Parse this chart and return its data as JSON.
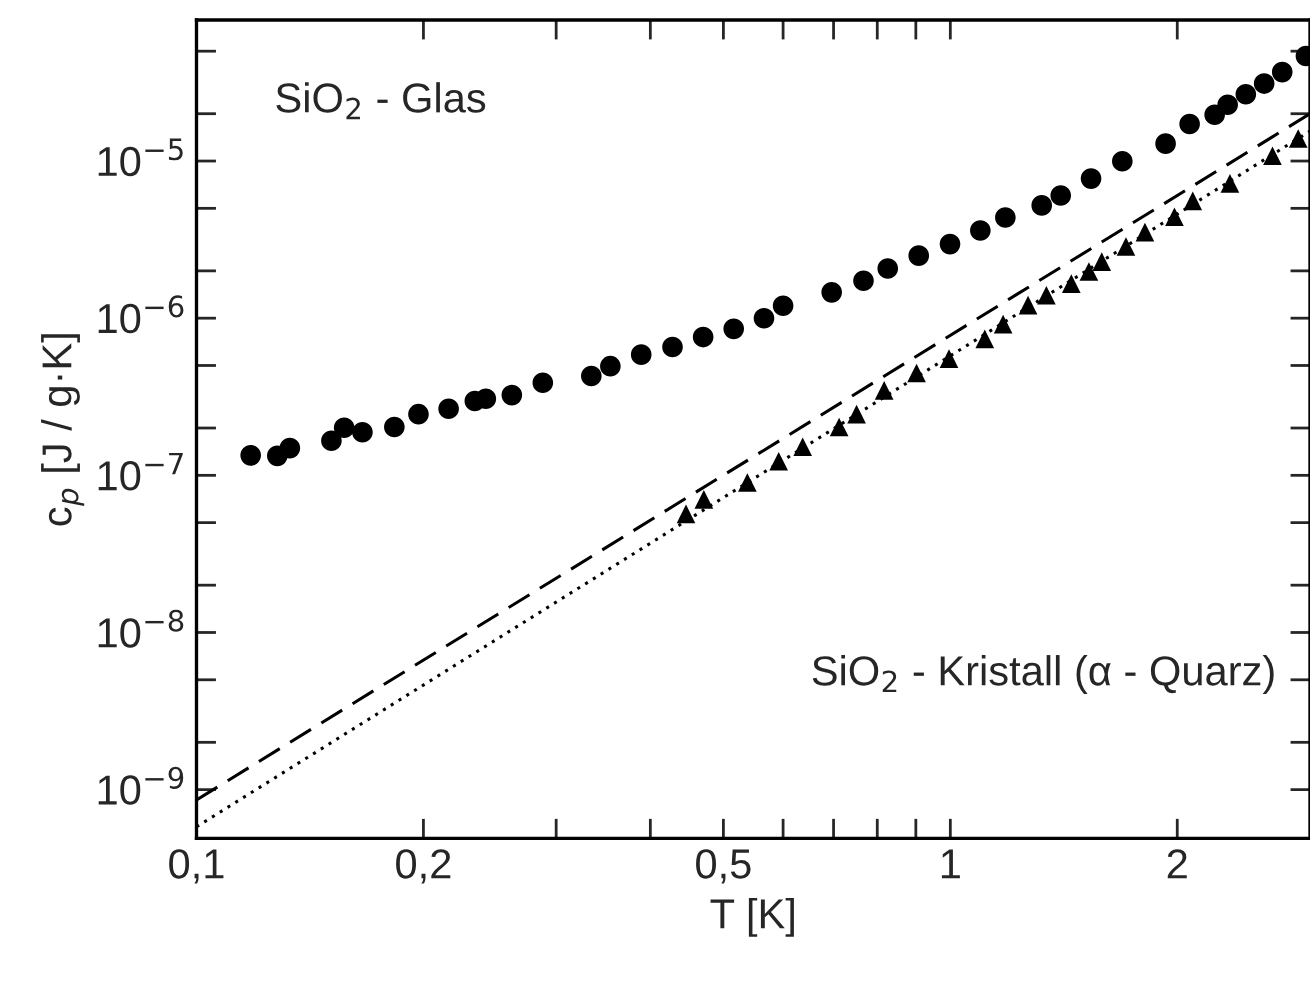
{
  "chart_data": {
    "type": "scatter",
    "xlabel": "T [K]",
    "ylabel": "c$_{p}$ [J / g·K]",
    "log": "xy",
    "grid": false,
    "legend": false,
    "xlim": [
      0.1,
      3
    ],
    "ylim": [
      4.9e-10,
      7.9e-05
    ],
    "xticks": [
      {
        "value": 0.1,
        "label": "0,1"
      },
      {
        "value": 0.2,
        "label": "0,2"
      },
      {
        "value": 0.3,
        "label": null
      },
      {
        "value": 0.4,
        "label": null
      },
      {
        "value": 0.5,
        "label": "0,5"
      },
      {
        "value": 0.6,
        "label": null
      },
      {
        "value": 0.7,
        "label": null
      },
      {
        "value": 0.8,
        "label": null
      },
      {
        "value": 0.9,
        "label": null
      },
      {
        "value": 1,
        "label": "1"
      },
      {
        "value": 2,
        "label": "2"
      }
    ],
    "yticks": [
      {
        "value": 1e-09,
        "label": "10$^{−9}$"
      },
      {
        "value": 2e-09,
        "label": null
      },
      {
        "value": 5e-09,
        "label": null
      },
      {
        "value": 1e-08,
        "label": "10$^{−8}$"
      },
      {
        "value": 2e-08,
        "label": null
      },
      {
        "value": 5e-08,
        "label": null
      },
      {
        "value": 1e-07,
        "label": "10$^{−7}$"
      },
      {
        "value": 2e-07,
        "label": null
      },
      {
        "value": 5e-07,
        "label": null
      },
      {
        "value": 1e-06,
        "label": "10$^{−6}$"
      },
      {
        "value": 2e-06,
        "label": null
      },
      {
        "value": 5e-06,
        "label": null
      },
      {
        "value": 1e-05,
        "label": "10$^{−5}$"
      },
      {
        "value": 2e-05,
        "label": null
      },
      {
        "value": 5e-05,
        "label": null
      }
    ],
    "series": [
      {
        "marker": "circle",
        "color": "#000000",
        "x": [
          0.118,
          0.128,
          0.133,
          0.151,
          0.157,
          0.166,
          0.183,
          0.197,
          0.216,
          0.234,
          0.242,
          0.262,
          0.288,
          0.334,
          0.354,
          0.389,
          0.428,
          0.47,
          0.516,
          0.566,
          0.6,
          0.696,
          0.767,
          0.826,
          0.908,
          0.999,
          1.096,
          1.183,
          1.322,
          1.401,
          1.537,
          1.691,
          1.93,
          2.077,
          2.242,
          2.333,
          2.466,
          2.608,
          2.756,
          2.963
        ],
        "values": [
          1.34e-07,
          1.33e-07,
          1.49e-07,
          1.66e-07,
          2.01e-07,
          1.88e-07,
          2.03e-07,
          2.45e-07,
          2.65e-07,
          2.97e-07,
          3.07e-07,
          3.24e-07,
          3.88e-07,
          4.29e-07,
          4.95e-07,
          5.86e-07,
          6.55e-07,
          7.58e-07,
          8.55e-07,
          1e-06,
          1.2e-06,
          1.46e-06,
          1.73e-06,
          2.07e-06,
          2.5e-06,
          2.96e-06,
          3.61e-06,
          4.37e-06,
          5.22e-06,
          6.04e-06,
          7.73e-06,
          9.97e-06,
          1.29e-05,
          1.72e-05,
          1.97e-05,
          2.28e-05,
          2.66e-05,
          3.11e-05,
          3.68e-05,
          4.66e-05
        ]
      },
      {
        "marker": "triangle",
        "color": "#000000",
        "x": [
          0.446,
          0.471,
          0.538,
          0.592,
          0.637,
          0.712,
          0.751,
          0.817,
          0.902,
          0.996,
          1.111,
          1.175,
          1.268,
          1.341,
          1.447,
          1.527,
          1.588,
          1.71,
          1.812,
          1.983,
          2.097,
          2.349,
          2.675,
          2.894
        ],
        "values": [
          5.69e-08,
          7.03e-08,
          9e-08,
          1.23e-07,
          1.52e-07,
          2.03e-07,
          2.45e-07,
          3.47e-07,
          4.48e-07,
          5.53e-07,
          7.39e-07,
          9.16e-07,
          1.21e-06,
          1.4e-06,
          1.66e-06,
          1.98e-06,
          2.29e-06,
          2.86e-06,
          3.53e-06,
          4.42e-06,
          5.58e-06,
          7.21e-06,
          1.08e-05,
          1.39e-05
        ]
      },
      {
        "type": "line",
        "line_style": "dashed",
        "color": "#000000",
        "x": [
          0.1,
          3
        ],
        "values": [
          8.6e-10,
          2e-05
        ]
      },
      {
        "type": "line",
        "line_style": "dotted",
        "color": "#000000",
        "x": [
          0.1,
          3
        ],
        "values": [
          5.8e-10,
          1.55e-05
        ]
      }
    ],
    "annotations": [
      "SiO$_{2}$ - Glas",
      "SiO$_{2}$ - Kristall (α - Quarz)"
    ]
  }
}
